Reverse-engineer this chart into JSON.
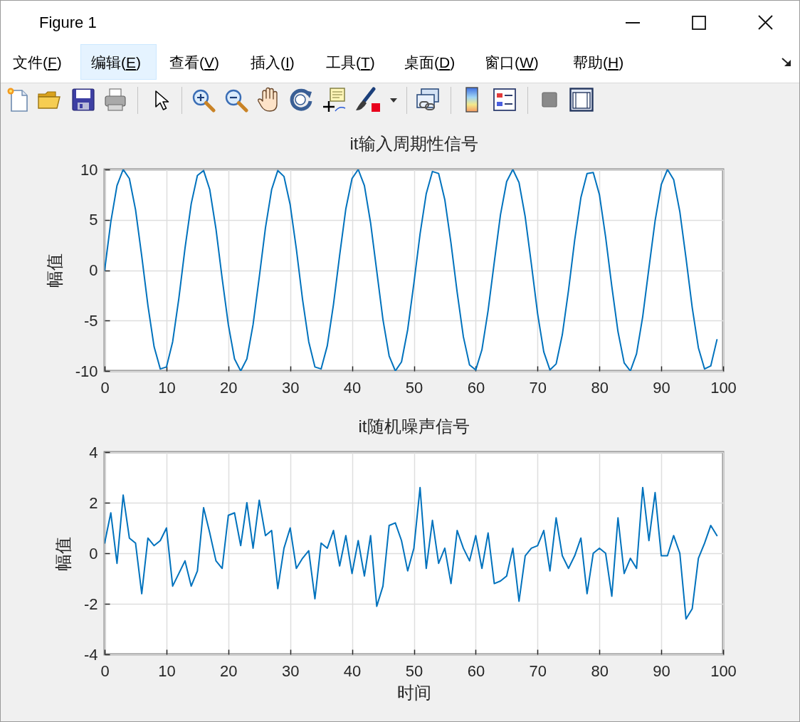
{
  "chart_data": [
    {
      "type": "other",
      "title": "Figure 1",
      "annotations": [
        "文件(F)",
        "编辑(E)",
        "查看(V)",
        "插入(I)",
        "工具(T)",
        "桌面(D)",
        "窗口(W)",
        "帮助(H)"
      ]
    },
    {
      "type": "line",
      "title": "it输入周期性信号",
      "ylabel": "幅值",
      "x": [
        0,
        1,
        2,
        3,
        4,
        5,
        6,
        7,
        8,
        9,
        10,
        11,
        12,
        13,
        14,
        15,
        16,
        17,
        18,
        19,
        20,
        21,
        22,
        23,
        24,
        25,
        26,
        27,
        28,
        29,
        30,
        31,
        32,
        33,
        34,
        35,
        36,
        37,
        38,
        39,
        40,
        41,
        42,
        43,
        44,
        45,
        46,
        47,
        48,
        49,
        50,
        51,
        52,
        53,
        54,
        55,
        56,
        57,
        58,
        59,
        60,
        61,
        62,
        63,
        64,
        65,
        66,
        67,
        68,
        69,
        70,
        71,
        72,
        73,
        74,
        75,
        76,
        77,
        78,
        79,
        80,
        81,
        82,
        83,
        84,
        85,
        86,
        87,
        88,
        89,
        90,
        91,
        92,
        93,
        94,
        95,
        96,
        97,
        98,
        99
      ],
      "series": [
        {
          "color": "#0072bd",
          "values": [
            0.0,
            4.8,
            8.4,
            10.0,
            9.1,
            6.0,
            1.4,
            -3.5,
            -7.6,
            -9.8,
            -9.6,
            -7.1,
            -2.8,
            2.2,
            6.6,
            9.4,
            9.9,
            8.0,
            4.1,
            -0.8,
            -5.4,
            -8.8,
            -10.0,
            -8.8,
            -5.4,
            -0.7,
            4.2,
            8.0,
            9.9,
            9.3,
            6.5,
            2.1,
            -2.9,
            -7.1,
            -9.6,
            -9.8,
            -7.5,
            -3.4,
            1.5,
            6.1,
            9.1,
            10.0,
            8.4,
            4.7,
            -0.1,
            -4.9,
            -8.5,
            -10.0,
            -9.1,
            -5.9,
            -1.3,
            3.6,
            7.6,
            9.8,
            9.6,
            7.0,
            2.7,
            -2.2,
            -6.6,
            -9.4,
            -9.9,
            -7.9,
            -4.0,
            0.8,
            5.5,
            8.8,
            10.0,
            8.7,
            5.3,
            0.6,
            -4.3,
            -8.1,
            -9.9,
            -9.3,
            -6.4,
            -2.0,
            3.0,
            7.2,
            9.6,
            9.7,
            7.5,
            3.3,
            -1.6,
            -6.1,
            -9.2,
            -10.0,
            -8.3,
            -4.6,
            0.2,
            4.9,
            8.5,
            10.0,
            9.0,
            5.8,
            1.2,
            -3.7,
            -7.7,
            -9.8,
            -9.5,
            -6.9
          ]
        }
      ],
      "xlim": [
        0,
        100
      ],
      "xticks": [
        0,
        10,
        20,
        30,
        40,
        50,
        60,
        70,
        80,
        90,
        100
      ],
      "ylim": [
        -10,
        10
      ],
      "yticks": [
        -10,
        -5,
        0,
        5,
        10
      ],
      "grid": true
    },
    {
      "type": "line",
      "title": "it随机噪声信号",
      "xlabel": "时间",
      "ylabel": "幅值",
      "x": [
        0,
        1,
        2,
        3,
        4,
        5,
        6,
        7,
        8,
        9,
        10,
        11,
        12,
        13,
        14,
        15,
        16,
        17,
        18,
        19,
        20,
        21,
        22,
        23,
        24,
        25,
        26,
        27,
        28,
        29,
        30,
        31,
        32,
        33,
        34,
        35,
        36,
        37,
        38,
        39,
        40,
        41,
        42,
        43,
        44,
        45,
        46,
        47,
        48,
        49,
        50,
        51,
        52,
        53,
        54,
        55,
        56,
        57,
        58,
        59,
        60,
        61,
        62,
        63,
        64,
        65,
        66,
        67,
        68,
        69,
        70,
        71,
        72,
        73,
        74,
        75,
        76,
        77,
        78,
        79,
        80,
        81,
        82,
        83,
        84,
        85,
        86,
        87,
        88,
        89,
        90,
        91,
        92,
        93,
        94,
        95,
        96,
        97,
        98,
        99
      ],
      "series": [
        {
          "color": "#0072bd",
          "values": [
            0.4,
            1.6,
            -0.4,
            2.3,
            0.6,
            0.4,
            -1.6,
            0.6,
            0.3,
            0.5,
            1.0,
            -1.3,
            -0.8,
            -0.3,
            -1.3,
            -0.7,
            1.8,
            0.8,
            -0.3,
            -0.6,
            1.5,
            1.6,
            0.3,
            2.0,
            0.2,
            2.1,
            0.7,
            0.9,
            -1.4,
            0.2,
            1.0,
            -0.6,
            -0.2,
            0.1,
            -1.8,
            0.4,
            0.2,
            0.9,
            -0.5,
            0.7,
            -0.8,
            0.5,
            -0.9,
            0.7,
            -2.1,
            -1.3,
            1.1,
            1.2,
            0.5,
            -0.7,
            0.2,
            2.6,
            -0.6,
            1.3,
            -0.4,
            0.2,
            -1.2,
            0.9,
            0.2,
            -0.3,
            0.7,
            -0.6,
            0.8,
            -1.2,
            -1.1,
            -0.9,
            0.2,
            -1.9,
            -0.1,
            0.2,
            0.3,
            0.9,
            -0.7,
            1.4,
            -0.1,
            -0.6,
            -0.1,
            0.6,
            -1.6,
            0.0,
            0.2,
            0.0,
            -1.7,
            1.4,
            -0.8,
            -0.2,
            -0.6,
            2.6,
            0.5,
            2.4,
            -0.1,
            -0.1,
            0.7,
            0.0,
            -2.6,
            -2.2,
            -0.2,
            0.4,
            1.1,
            0.7
          ]
        }
      ],
      "xlim": [
        0,
        100
      ],
      "xticks": [
        0,
        10,
        20,
        30,
        40,
        50,
        60,
        70,
        80,
        90,
        100
      ],
      "ylim": [
        -4,
        4
      ],
      "yticks": [
        -4,
        -2,
        0,
        2,
        4
      ],
      "grid": true
    }
  ]
}
